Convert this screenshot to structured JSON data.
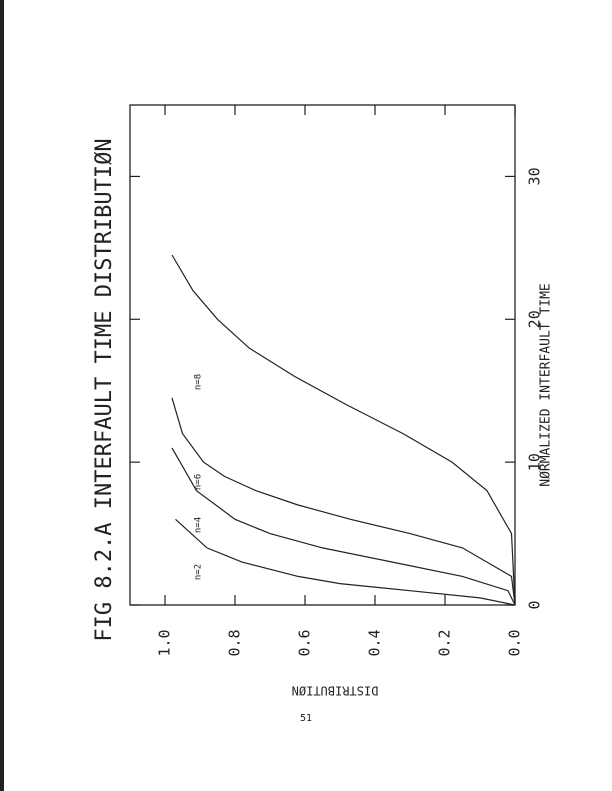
{
  "chart_data": {
    "type": "line",
    "title": "FIG 8.2.A INTERFAULT TIME DISTRIBUTIØN",
    "x_label": "NØRMALIZED INTERFAULT TIME",
    "y_label": "DISTRIBUTIØN",
    "xlim": [
      0,
      35
    ],
    "xticks": [
      0,
      10,
      20,
      30
    ],
    "ylim": [
      0,
      1.1
    ],
    "yticks": [
      {
        "value": 0,
        "label": "0.0"
      },
      0.2,
      0.4,
      0.6,
      0.8,
      {
        "value": 1,
        "label": "1.0"
      }
    ],
    "series": [
      {
        "name": "n=2",
        "color": "#222",
        "x": [
          0,
          0.5,
          1,
          1.5,
          2,
          3,
          4,
          6
        ],
        "values": [
          0,
          0.1,
          0.3,
          0.5,
          0.62,
          0.78,
          0.88,
          0.97
        ]
      },
      {
        "name": "n=4",
        "color": "#222",
        "x": [
          0,
          1,
          2,
          3,
          4,
          5,
          6,
          8,
          11
        ],
        "values": [
          0,
          0.02,
          0.15,
          0.35,
          0.55,
          0.7,
          0.8,
          0.91,
          0.98
        ]
      },
      {
        "name": "n=6",
        "color": "#222",
        "x": [
          0,
          2,
          4,
          5,
          6,
          7,
          8,
          9,
          10,
          12,
          14.5
        ],
        "values": [
          0,
          0.01,
          0.15,
          0.3,
          0.47,
          0.62,
          0.74,
          0.83,
          0.89,
          0.95,
          0.98
        ]
      },
      {
        "name": "n=8",
        "color": "#222",
        "x": [
          0,
          5,
          8,
          10,
          12,
          14,
          16,
          18,
          20,
          22,
          24.5
        ],
        "values": [
          0,
          0.01,
          0.08,
          0.18,
          0.32,
          0.48,
          0.63,
          0.76,
          0.85,
          0.92,
          0.98
        ]
      }
    ]
  },
  "page_number": "51"
}
